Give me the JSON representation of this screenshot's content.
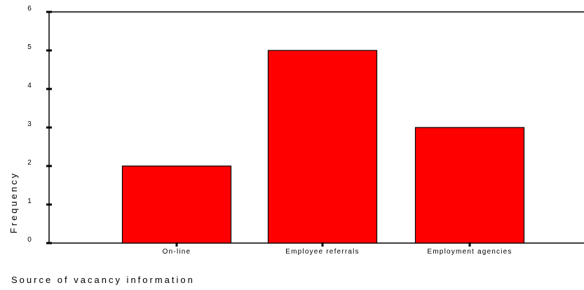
{
  "chart_data": {
    "type": "bar",
    "categories": [
      "On-line",
      "Employee referrals",
      "Employment agencies"
    ],
    "values": [
      2,
      5,
      3
    ],
    "title": "",
    "xlabel": "Source of vacancy information",
    "ylabel": "Frequency",
    "ylim": [
      0,
      6
    ],
    "yticks": [
      0,
      1,
      2,
      3,
      4,
      5,
      6
    ],
    "grid": false,
    "legend": "none",
    "bar_color": "#ff0000",
    "edge_color": "#000000"
  }
}
